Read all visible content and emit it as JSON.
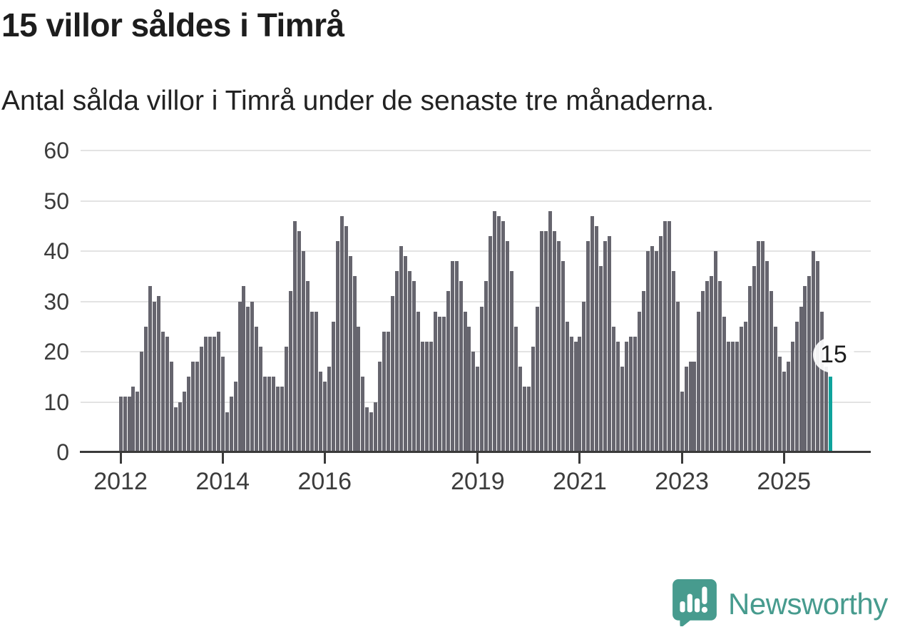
{
  "title": "15 villor såldes i Timrå",
  "subtitle": "Antal sålda villor i Timrå under de senaste tre månaderna.",
  "annotation": {
    "label": "15"
  },
  "branding": {
    "name": "Newsworthy"
  },
  "colors": {
    "bar": "#66656e",
    "highlight": "#0fa39c",
    "grid": "#e3e3e3",
    "axis": "#3a3a3a",
    "axis_text": "#3c3c3c",
    "text": "#1d1d1d",
    "brand": "#479b8e"
  },
  "chart_data": {
    "type": "bar",
    "title": "15 villor såldes i Timrå",
    "subtitle": "Antal sålda villor i Timrå under de senaste tre månaderna.",
    "xlabel": "",
    "ylabel": "",
    "ylim": [
      0,
      60
    ],
    "yticks": [
      0,
      10,
      20,
      30,
      40,
      50,
      60
    ],
    "grid": "horizontal",
    "legend": "none",
    "unit": "sålda villor per 3-månadersperiod",
    "start_month": "2012-01",
    "x_axis_ticks": [
      {
        "label": "2012",
        "month_index": 0
      },
      {
        "label": "2014",
        "month_index": 24
      },
      {
        "label": "2016",
        "month_index": 48
      },
      {
        "label": "2019",
        "month_index": 84
      },
      {
        "label": "2021",
        "month_index": 108
      },
      {
        "label": "2023",
        "month_index": 132
      },
      {
        "label": "2025",
        "month_index": 156
      }
    ],
    "values": [
      11,
      11,
      11,
      13,
      12,
      20,
      25,
      33,
      30,
      31,
      24,
      23,
      18,
      9,
      10,
      12,
      15,
      18,
      18,
      21,
      23,
      23,
      23,
      24,
      19,
      8,
      11,
      14,
      30,
      33,
      29,
      30,
      25,
      21,
      15,
      15,
      15,
      13,
      13,
      21,
      32,
      46,
      44,
      40,
      34,
      28,
      28,
      16,
      14,
      17,
      26,
      42,
      47,
      45,
      39,
      35,
      25,
      15,
      9,
      8,
      10,
      18,
      24,
      24,
      31,
      36,
      41,
      39,
      36,
      34,
      28,
      22,
      22,
      22,
      28,
      27,
      27,
      32,
      38,
      38,
      34,
      28,
      25,
      20,
      17,
      29,
      34,
      43,
      48,
      47,
      46,
      42,
      36,
      25,
      17,
      13,
      13,
      21,
      29,
      44,
      44,
      48,
      44,
      42,
      38,
      26,
      23,
      22,
      23,
      30,
      42,
      47,
      45,
      37,
      42,
      43,
      25,
      22,
      17,
      22,
      23,
      23,
      28,
      32,
      40,
      41,
      40,
      43,
      46,
      46,
      36,
      30,
      12,
      17,
      18,
      18,
      28,
      32,
      34,
      35,
      40,
      34,
      27,
      22,
      22,
      22,
      25,
      26,
      33,
      37,
      42,
      42,
      38,
      32,
      25,
      19,
      16,
      18,
      22,
      26,
      29,
      33,
      35,
      40,
      38,
      28,
      17,
      15
    ],
    "highlight_last_bar": true,
    "highlight_value": 15
  }
}
